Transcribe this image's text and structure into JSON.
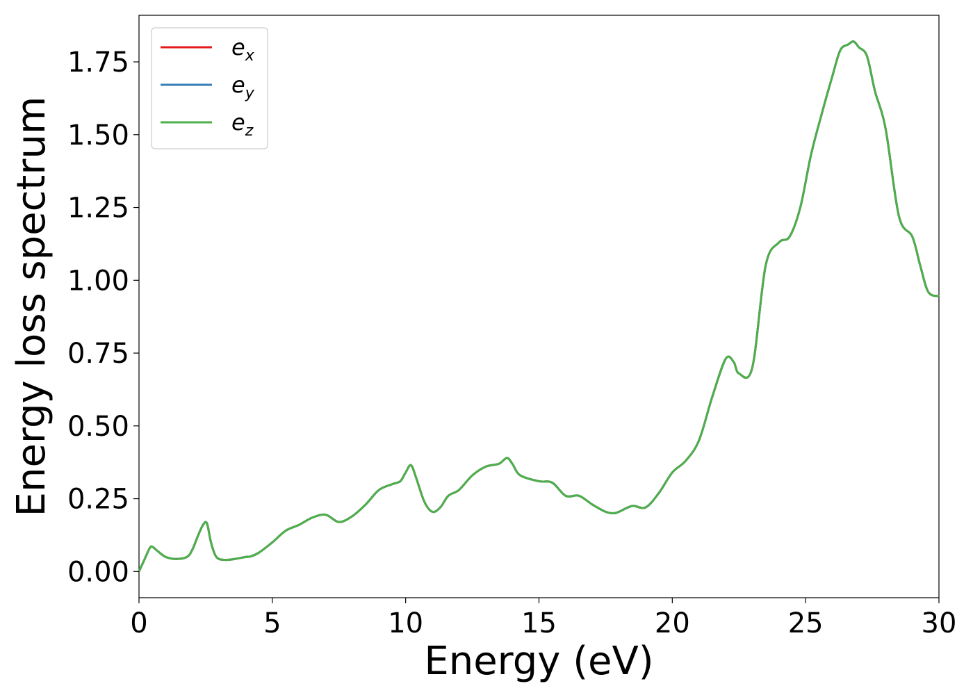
{
  "chart_data": {
    "type": "line",
    "title": "",
    "xlabel": "Energy (eV)",
    "ylabel": "Energy loss spectrum",
    "xlim": [
      0,
      30
    ],
    "ylim": [
      -0.09,
      1.91
    ],
    "xticks": [
      0,
      5,
      10,
      15,
      20,
      25,
      30
    ],
    "xtick_labels": [
      "0",
      "5",
      "10",
      "15",
      "20",
      "25",
      "30"
    ],
    "yticks": [
      0,
      0.25,
      0.5,
      0.75,
      1.0,
      1.25,
      1.5,
      1.75
    ],
    "ytick_labels": [
      "0.00",
      "0.25",
      "0.50",
      "0.75",
      "1.00",
      "1.25",
      "1.50",
      "1.75"
    ],
    "grid": false,
    "legend_position": "top-left",
    "x": [
      0,
      0.2,
      0.4,
      0.5,
      0.7,
      1.0,
      1.4,
      1.8,
      2.0,
      2.2,
      2.4,
      2.55,
      2.7,
      2.9,
      3.2,
      3.6,
      4.0,
      4.2,
      4.5,
      5.0,
      5.5,
      6.0,
      6.5,
      7.0,
      7.5,
      8.0,
      8.5,
      9.0,
      9.5,
      9.8,
      10.0,
      10.2,
      10.4,
      10.7,
      11.0,
      11.3,
      11.6,
      12.0,
      12.5,
      13.0,
      13.5,
      13.8,
      14.0,
      14.3,
      15.0,
      15.5,
      16.0,
      16.5,
      17.0,
      17.5,
      17.8,
      18.0,
      18.5,
      19.0,
      19.5,
      20.0,
      20.5,
      21.0,
      21.5,
      22.0,
      22.3,
      22.5,
      23.0,
      23.5,
      24.0,
      24.4,
      24.8,
      25.2,
      25.6,
      26.0,
      26.3,
      26.6,
      26.8,
      27.0,
      27.3,
      27.6,
      28.0,
      28.5,
      29.0,
      29.3,
      29.6,
      30.0
    ],
    "series": [
      {
        "name": "e_x",
        "color": "#e41a1c",
        "values": [
          0.0,
          0.04,
          0.08,
          0.085,
          0.07,
          0.05,
          0.043,
          0.05,
          0.075,
          0.12,
          0.16,
          0.165,
          0.1,
          0.05,
          0.04,
          0.043,
          0.05,
          0.052,
          0.065,
          0.1,
          0.14,
          0.16,
          0.185,
          0.195,
          0.17,
          0.19,
          0.23,
          0.28,
          0.3,
          0.31,
          0.34,
          0.365,
          0.32,
          0.24,
          0.205,
          0.22,
          0.26,
          0.28,
          0.33,
          0.36,
          0.37,
          0.39,
          0.37,
          0.33,
          0.31,
          0.305,
          0.26,
          0.26,
          0.23,
          0.205,
          0.2,
          0.205,
          0.225,
          0.22,
          0.27,
          0.34,
          0.38,
          0.45,
          0.6,
          0.73,
          0.72,
          0.68,
          0.7,
          1.05,
          1.13,
          1.15,
          1.25,
          1.43,
          1.57,
          1.7,
          1.79,
          1.81,
          1.82,
          1.8,
          1.77,
          1.65,
          1.52,
          1.22,
          1.15,
          1.05,
          0.96,
          0.945
        ]
      },
      {
        "name": "e_y",
        "color": "#377eb8",
        "values": [
          0.0,
          0.04,
          0.08,
          0.085,
          0.07,
          0.05,
          0.043,
          0.05,
          0.075,
          0.12,
          0.16,
          0.165,
          0.1,
          0.05,
          0.04,
          0.043,
          0.05,
          0.052,
          0.065,
          0.1,
          0.14,
          0.16,
          0.185,
          0.195,
          0.17,
          0.19,
          0.23,
          0.28,
          0.3,
          0.31,
          0.34,
          0.365,
          0.32,
          0.24,
          0.205,
          0.22,
          0.26,
          0.28,
          0.33,
          0.36,
          0.37,
          0.39,
          0.37,
          0.33,
          0.31,
          0.305,
          0.26,
          0.26,
          0.23,
          0.205,
          0.2,
          0.205,
          0.225,
          0.22,
          0.27,
          0.34,
          0.38,
          0.45,
          0.6,
          0.73,
          0.72,
          0.68,
          0.7,
          1.05,
          1.13,
          1.15,
          1.25,
          1.43,
          1.57,
          1.7,
          1.79,
          1.81,
          1.82,
          1.8,
          1.77,
          1.65,
          1.52,
          1.22,
          1.15,
          1.05,
          0.96,
          0.945
        ]
      },
      {
        "name": "e_z",
        "color": "#4daf4a",
        "values": [
          0.0,
          0.04,
          0.08,
          0.085,
          0.07,
          0.05,
          0.043,
          0.05,
          0.075,
          0.12,
          0.16,
          0.165,
          0.1,
          0.05,
          0.04,
          0.043,
          0.05,
          0.052,
          0.065,
          0.1,
          0.14,
          0.16,
          0.185,
          0.195,
          0.17,
          0.19,
          0.23,
          0.28,
          0.3,
          0.31,
          0.34,
          0.365,
          0.32,
          0.24,
          0.205,
          0.22,
          0.26,
          0.28,
          0.33,
          0.36,
          0.37,
          0.39,
          0.37,
          0.33,
          0.31,
          0.305,
          0.26,
          0.26,
          0.23,
          0.205,
          0.2,
          0.205,
          0.225,
          0.22,
          0.27,
          0.34,
          0.38,
          0.45,
          0.6,
          0.73,
          0.72,
          0.68,
          0.7,
          1.05,
          1.13,
          1.15,
          1.25,
          1.43,
          1.57,
          1.7,
          1.79,
          1.81,
          1.82,
          1.8,
          1.77,
          1.65,
          1.52,
          1.22,
          1.15,
          1.05,
          0.96,
          0.945
        ]
      }
    ],
    "legend": [
      {
        "base": "e",
        "sub": "x",
        "color": "#e41a1c"
      },
      {
        "base": "e",
        "sub": "y",
        "color": "#377eb8"
      },
      {
        "base": "e",
        "sub": "z",
        "color": "#4daf4a"
      }
    ]
  }
}
